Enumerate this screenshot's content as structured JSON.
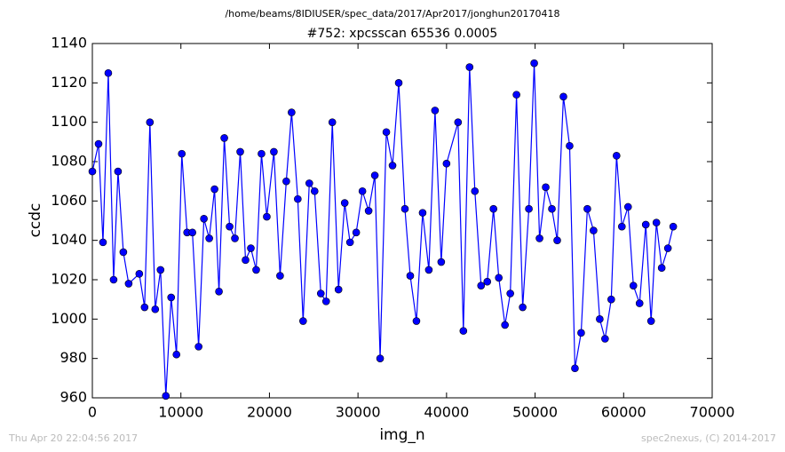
{
  "chart_data": {
    "type": "line",
    "subtitle": "/home/beams/8IDIUSER/spec_data/2017/Apr2017/jonghun20170418",
    "title": "#752: xpcsscan 65536 0.0005",
    "x_label": "img_n",
    "y_label": "ccdc",
    "xlim": [
      0,
      70000
    ],
    "ylim": [
      960,
      1140
    ],
    "xticks": [
      0,
      10000,
      20000,
      30000,
      40000,
      50000,
      60000,
      70000
    ],
    "yticks": [
      960,
      980,
      1000,
      1020,
      1040,
      1060,
      1080,
      1100,
      1120,
      1140
    ],
    "marker": true,
    "x": [
      0,
      700,
      1200,
      1800,
      2400,
      2900,
      3500,
      4100,
      5300,
      5900,
      6500,
      7100,
      7700,
      8300,
      8900,
      9500,
      10100,
      10700,
      11300,
      12000,
      12600,
      13200,
      13800,
      14300,
      14900,
      15500,
      16100,
      16700,
      17300,
      17900,
      18500,
      19100,
      19700,
      20500,
      21200,
      21900,
      22500,
      23200,
      23800,
      24500,
      25100,
      25800,
      26400,
      27100,
      27800,
      28500,
      29100,
      29800,
      30500,
      31200,
      31900,
      32500,
      33200,
      33900,
      34600,
      35300,
      35900,
      36600,
      37300,
      38000,
      38700,
      39400,
      40000,
      41300,
      41900,
      42600,
      43200,
      43900,
      44600,
      45300,
      45900,
      46600,
      47200,
      47900,
      48600,
      49300,
      49900,
      50500,
      51200,
      51900,
      52500,
      53200,
      53900,
      54500,
      55200,
      55900,
      56600,
      57300,
      57900,
      58600,
      59200,
      59800,
      60500,
      61100,
      61800,
      62500,
      63100,
      63700,
      64300,
      65000,
      65600
    ],
    "series": [
      {
        "name": "ccdc",
        "color": "#0000ff",
        "values": [
          1075,
          1089,
          1039,
          1125,
          1020,
          1075,
          1034,
          1018,
          1023,
          1006,
          1100,
          1005,
          1025,
          961,
          1011,
          982,
          1084,
          1044,
          1044,
          986,
          1051,
          1041,
          1066,
          1014,
          1092,
          1047,
          1041,
          1085,
          1030,
          1036,
          1025,
          1084,
          1052,
          1085,
          1022,
          1070,
          1105,
          1061,
          999,
          1069,
          1065,
          1013,
          1009,
          1100,
          1015,
          1059,
          1039,
          1044,
          1065,
          1055,
          1073,
          980,
          1095,
          1078,
          1120,
          1056,
          1022,
          999,
          1054,
          1025,
          1106,
          1029,
          1079,
          1100,
          994,
          1128,
          1065,
          1017,
          1019,
          1056,
          1021,
          997,
          1013,
          1114,
          1006,
          1056,
          1130,
          1041,
          1067,
          1056,
          1040,
          1113,
          1088,
          975,
          993,
          1056,
          1045,
          1000,
          990,
          1010,
          1083,
          1047,
          1057,
          1017,
          1008,
          1048,
          999,
          1049,
          1026,
          1036,
          1047
        ]
      }
    ]
  },
  "timestamp": "Thu Apr 20 22:04:56 2017",
  "credit": "spec2nexus, (C) 2014-2017"
}
